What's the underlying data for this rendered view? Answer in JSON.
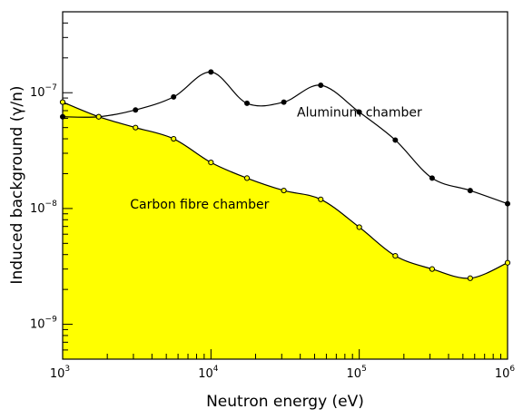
{
  "chart_data": {
    "type": "line",
    "xlabel": "Neutron energy (eV)",
    "ylabel": "Induced background (γ/n)",
    "xscale": "log",
    "yscale": "log",
    "xlim": [
      1000,
      1000000
    ],
    "ylim": [
      5e-10,
      5e-07
    ],
    "x_ticks": [
      {
        "base": "10",
        "exp": "3"
      },
      {
        "base": "10",
        "exp": "4"
      },
      {
        "base": "10",
        "exp": "5"
      },
      {
        "base": "10",
        "exp": "6"
      }
    ],
    "y_ticks": [
      {
        "base": "10",
        "exp": "−9"
      },
      {
        "base": "10",
        "exp": "−8"
      },
      {
        "base": "10",
        "exp": "−7"
      }
    ],
    "grid": false,
    "series": [
      {
        "name": "Aluminum chamber",
        "color": "#000000",
        "marker": "filled-circle",
        "fill": "none",
        "points": [
          [
            1000,
            6.2e-08
          ],
          [
            1750,
            6.2e-08
          ],
          [
            3100,
            7.1e-08
          ],
          [
            5600,
            9.2e-08
          ],
          [
            10000,
            1.51e-07
          ],
          [
            17500,
            8.1e-08
          ],
          [
            31000,
            8.3e-08
          ],
          [
            55000,
            1.16e-07
          ],
          [
            100000,
            6.8e-08
          ],
          [
            175000,
            3.9e-08
          ],
          [
            310000,
            1.83e-08
          ],
          [
            560000,
            1.43e-08
          ],
          [
            1000000,
            1.1e-08
          ]
        ]
      },
      {
        "name": "Carbon fibre chamber",
        "color": "#000000",
        "marker": "open-circle",
        "fill": "#ffff00",
        "points": [
          [
            1000,
            8.3e-08
          ],
          [
            1750,
            6.2e-08
          ],
          [
            3100,
            5e-08
          ],
          [
            5600,
            4e-08
          ],
          [
            10000,
            2.5e-08
          ],
          [
            17500,
            1.83e-08
          ],
          [
            31000,
            1.43e-08
          ],
          [
            55000,
            1.2e-08
          ],
          [
            100000,
            6.9e-09
          ],
          [
            175000,
            3.9e-09
          ],
          [
            310000,
            3e-09
          ],
          [
            560000,
            2.5e-09
          ],
          [
            1000000,
            3.4e-09
          ]
        ]
      }
    ],
    "annotations": [
      {
        "text": "Aluminum chamber",
        "x": 38000,
        "y": 6.2e-08
      },
      {
        "text": "Carbon fibre chamber",
        "x": 2850,
        "y": 1e-08
      }
    ]
  }
}
